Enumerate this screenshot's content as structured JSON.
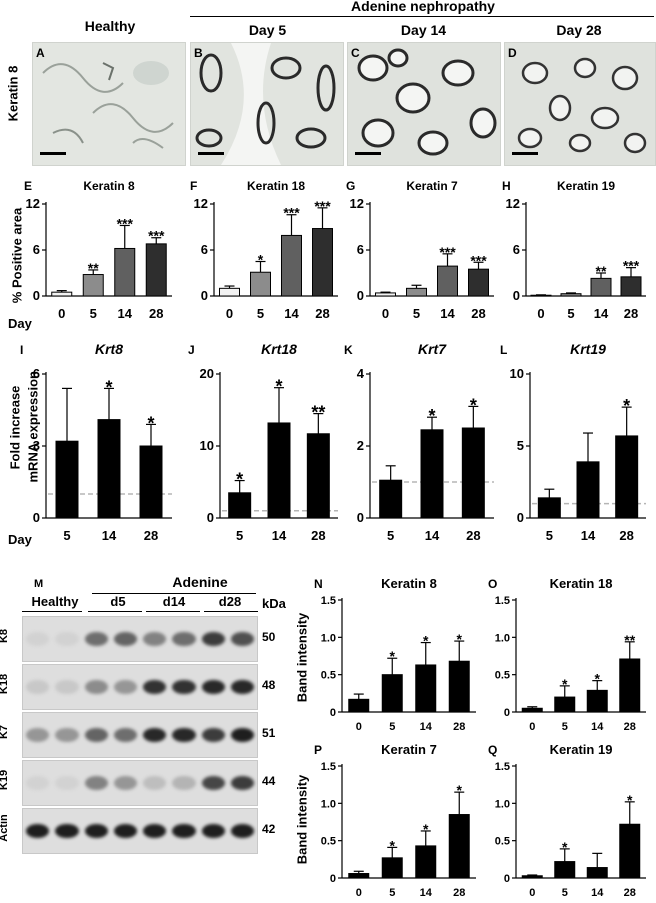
{
  "top": {
    "group_header": "Adenine nephropathy",
    "columns": [
      "Healthy",
      "Day 5",
      "Day 14",
      "Day 28"
    ],
    "panel_letters": [
      "A",
      "B",
      "C",
      "D"
    ],
    "row_label": "Keratin 8"
  },
  "area_section": {
    "ylabel": "% Positive area",
    "xlabel_prefix": "Day"
  },
  "mrna_section": {
    "ylabel_line1": "Fold increase",
    "ylabel_line2": "mRNA expression",
    "xlabel_prefix": "Day"
  },
  "blot": {
    "panel_letter": "M",
    "header_adenine": "Adenine",
    "lane_groups": [
      "Healthy",
      "d5",
      "d14",
      "d28"
    ],
    "kda_header": "kDa",
    "rows": [
      {
        "label": "K8",
        "kda": "50",
        "intensity": [
          0.05,
          0.05,
          0.55,
          0.6,
          0.45,
          0.55,
          0.8,
          0.7
        ]
      },
      {
        "label": "K18",
        "kda": "48",
        "intensity": [
          0.1,
          0.1,
          0.4,
          0.35,
          0.85,
          0.85,
          0.9,
          0.9
        ]
      },
      {
        "label": "K7",
        "kda": "51",
        "intensity": [
          0.35,
          0.35,
          0.6,
          0.55,
          0.9,
          0.9,
          0.8,
          0.95
        ]
      },
      {
        "label": "K19",
        "kda": "44",
        "intensity": [
          0.05,
          0.05,
          0.45,
          0.35,
          0.15,
          0.2,
          0.75,
          0.8
        ]
      },
      {
        "label": "Actin",
        "kda": "42",
        "intensity": [
          0.95,
          0.95,
          0.95,
          0.95,
          0.95,
          0.95,
          0.95,
          0.95
        ]
      }
    ]
  },
  "chart_data": [
    {
      "id": "E",
      "letter": "E",
      "type": "bar",
      "title": "Keratin 8",
      "categories": [
        "0",
        "5",
        "14",
        "28"
      ],
      "values": [
        0.5,
        2.8,
        6.2,
        6.8
      ],
      "errors": [
        0.2,
        0.6,
        3.0,
        0.8
      ],
      "ylim": [
        0,
        12
      ],
      "yticks": [
        0,
        6,
        12
      ],
      "sig": [
        "",
        "**",
        "***",
        "***"
      ],
      "colors": [
        "#f2f2f2",
        "#8c8c8c",
        "#606060",
        "#2e2e2e"
      ]
    },
    {
      "id": "F",
      "letter": "F",
      "type": "bar",
      "title": "Keratin 18",
      "categories": [
        "0",
        "5",
        "14",
        "28"
      ],
      "values": [
        1.0,
        3.1,
        7.9,
        8.8
      ],
      "errors": [
        0.3,
        1.4,
        2.7,
        2.7
      ],
      "ylim": [
        0,
        12
      ],
      "yticks": [
        0,
        6,
        12
      ],
      "sig": [
        "",
        "*",
        "***",
        "***"
      ],
      "colors": [
        "#f2f2f2",
        "#8c8c8c",
        "#606060",
        "#2e2e2e"
      ]
    },
    {
      "id": "G",
      "letter": "G",
      "type": "bar",
      "title": "Keratin 7",
      "categories": [
        "0",
        "5",
        "14",
        "28"
      ],
      "values": [
        0.4,
        1.0,
        3.9,
        3.5
      ],
      "errors": [
        0.1,
        0.4,
        1.6,
        0.9
      ],
      "ylim": [
        0,
        12
      ],
      "yticks": [
        0,
        6,
        12
      ],
      "sig": [
        "",
        "",
        "***",
        "***"
      ],
      "colors": [
        "#f2f2f2",
        "#8c8c8c",
        "#606060",
        "#2e2e2e"
      ]
    },
    {
      "id": "H",
      "letter": "H",
      "type": "bar",
      "title": "Keratin 19",
      "categories": [
        "0",
        "5",
        "14",
        "28"
      ],
      "values": [
        0.1,
        0.3,
        2.3,
        2.5
      ],
      "errors": [
        0.05,
        0.1,
        0.7,
        1.2
      ],
      "ylim": [
        0,
        12
      ],
      "yticks": [
        0,
        6,
        12
      ],
      "sig": [
        "",
        "",
        "**",
        "***"
      ],
      "colors": [
        "#f2f2f2",
        "#8c8c8c",
        "#606060",
        "#2e2e2e"
      ]
    },
    {
      "id": "I",
      "letter": "I",
      "type": "bar",
      "title": "Krt8",
      "categories": [
        "5",
        "14",
        "28"
      ],
      "values": [
        3.2,
        4.1,
        3.0
      ],
      "errors": [
        2.2,
        1.3,
        0.9
      ],
      "ylim": [
        0,
        6
      ],
      "yticks": [
        0,
        3,
        6
      ],
      "baseline": 1,
      "sig": [
        "",
        "*",
        "*"
      ]
    },
    {
      "id": "J",
      "letter": "J",
      "type": "bar",
      "title": "Krt18",
      "categories": [
        "5",
        "14",
        "28"
      ],
      "values": [
        3.5,
        13.2,
        11.7
      ],
      "errors": [
        1.7,
        4.9,
        2.8
      ],
      "ylim": [
        0,
        20
      ],
      "yticks": [
        0,
        10,
        20
      ],
      "baseline": 1,
      "sig": [
        "*",
        "*",
        "**"
      ]
    },
    {
      "id": "K",
      "letter": "K",
      "type": "bar",
      "title": "Krt7",
      "categories": [
        "5",
        "14",
        "28"
      ],
      "values": [
        1.05,
        2.45,
        2.5
      ],
      "errors": [
        0.4,
        0.35,
        0.6
      ],
      "ylim": [
        0,
        4
      ],
      "yticks": [
        0,
        2,
        4
      ],
      "baseline": 1,
      "sig": [
        "",
        "*",
        "*"
      ]
    },
    {
      "id": "L",
      "letter": "L",
      "type": "bar",
      "title": "Krt19",
      "categories": [
        "5",
        "14",
        "28"
      ],
      "values": [
        1.4,
        3.9,
        5.7
      ],
      "errors": [
        0.6,
        2.0,
        2.0
      ],
      "ylim": [
        0,
        10
      ],
      "yticks": [
        0,
        5,
        10
      ],
      "baseline": 1,
      "sig": [
        "",
        "",
        "*"
      ]
    },
    {
      "id": "N",
      "letter": "N",
      "type": "bar",
      "title": "Keratin 8",
      "categories": [
        "0",
        "5",
        "14",
        "28"
      ],
      "values": [
        0.17,
        0.5,
        0.63,
        0.68
      ],
      "errors": [
        0.07,
        0.22,
        0.3,
        0.27
      ],
      "ylim": [
        0,
        1.5
      ],
      "yticks": [
        0,
        0.5,
        1.0,
        1.5
      ],
      "yticklabels": [
        "0",
        "0.5",
        "1.0",
        "1.5"
      ],
      "sig": [
        "",
        "*",
        "*",
        "*"
      ]
    },
    {
      "id": "O",
      "letter": "O",
      "type": "bar",
      "title": "Keratin 18",
      "categories": [
        "0",
        "5",
        "14",
        "28"
      ],
      "values": [
        0.05,
        0.2,
        0.29,
        0.71
      ],
      "errors": [
        0.02,
        0.15,
        0.13,
        0.23
      ],
      "ylim": [
        0,
        1.5
      ],
      "yticks": [
        0,
        0.5,
        1.0,
        1.5
      ],
      "yticklabels": [
        "0",
        "0.5",
        "1.0",
        "1.5"
      ],
      "sig": [
        "",
        "*",
        "*",
        "**"
      ]
    },
    {
      "id": "P",
      "letter": "P",
      "type": "bar",
      "title": "Keratin 7",
      "categories": [
        "0",
        "5",
        "14",
        "28"
      ],
      "values": [
        0.06,
        0.27,
        0.43,
        0.85
      ],
      "errors": [
        0.03,
        0.14,
        0.2,
        0.3
      ],
      "ylim": [
        0,
        1.5
      ],
      "yticks": [
        0,
        0.5,
        1.0,
        1.5
      ],
      "yticklabels": [
        "0",
        "0.5",
        "1.0",
        "1.5"
      ],
      "sig": [
        "",
        "*",
        "*",
        "*"
      ]
    },
    {
      "id": "Q",
      "letter": "Q",
      "type": "bar",
      "title": "Keratin 19",
      "categories": [
        "0",
        "5",
        "14",
        "28"
      ],
      "values": [
        0.03,
        0.22,
        0.14,
        0.72
      ],
      "errors": [
        0.01,
        0.17,
        0.19,
        0.3
      ],
      "ylim": [
        0,
        1.5
      ],
      "yticks": [
        0,
        0.5,
        1.0,
        1.5
      ],
      "yticklabels": [
        "0",
        "0.5",
        "1.0",
        "1.5"
      ],
      "sig": [
        "",
        "*",
        "",
        "*"
      ]
    }
  ]
}
